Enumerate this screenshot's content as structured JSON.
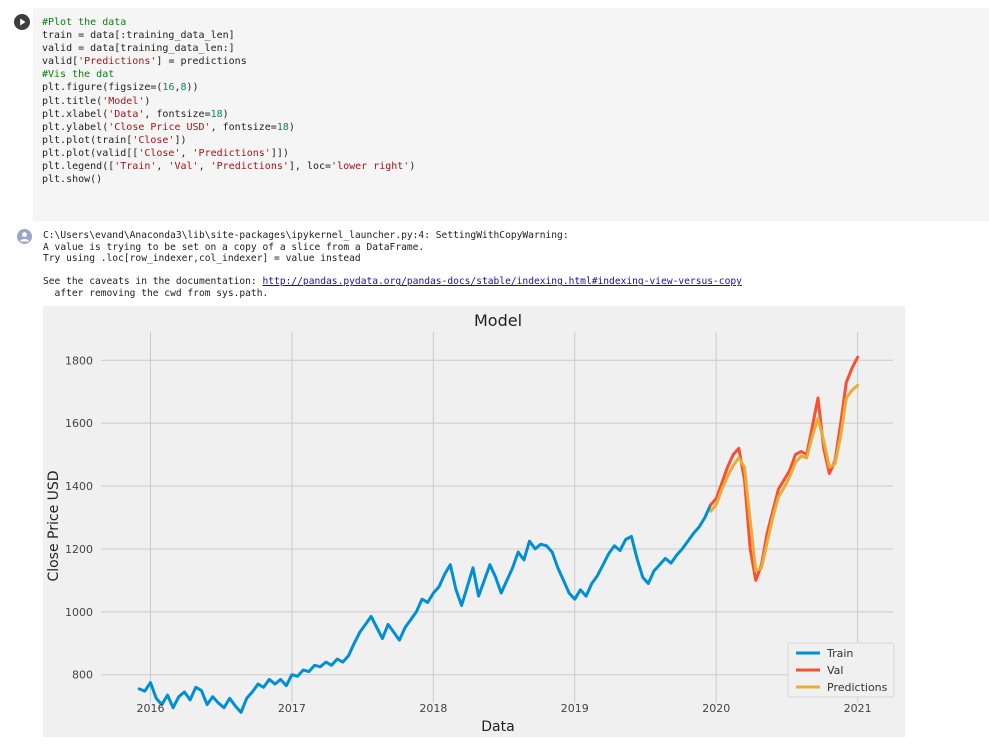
{
  "code": {
    "lines": [
      [
        {
          "t": "#Plot the data",
          "c": "c-com"
        }
      ],
      [
        {
          "t": "train = data[:training_data_len]"
        }
      ],
      [
        {
          "t": "valid = data[training_data_len:]"
        }
      ],
      [
        {
          "t": "valid["
        },
        {
          "t": "'Predictions'",
          "c": "c-str"
        },
        {
          "t": "] = predictions"
        }
      ],
      [
        {
          "t": "#Vis the dat",
          "c": "c-com"
        }
      ],
      [
        {
          "t": "plt.figure(figsize=("
        },
        {
          "t": "16",
          "c": "c-num"
        },
        {
          "t": ","
        },
        {
          "t": "8",
          "c": "c-num"
        },
        {
          "t": "))"
        }
      ],
      [
        {
          "t": "plt.title("
        },
        {
          "t": "'Model'",
          "c": "c-str"
        },
        {
          "t": ")"
        }
      ],
      [
        {
          "t": "plt.xlabel("
        },
        {
          "t": "'Data'",
          "c": "c-str"
        },
        {
          "t": ", fontsize="
        },
        {
          "t": "18",
          "c": "c-num"
        },
        {
          "t": ")"
        }
      ],
      [
        {
          "t": "plt.ylabel("
        },
        {
          "t": "'Close Price USD'",
          "c": "c-str"
        },
        {
          "t": ", fontsize="
        },
        {
          "t": "18",
          "c": "c-num"
        },
        {
          "t": ")"
        }
      ],
      [
        {
          "t": "plt.plot(train["
        },
        {
          "t": "'Close'",
          "c": "c-str"
        },
        {
          "t": "])"
        }
      ],
      [
        {
          "t": "plt.plot(valid[["
        },
        {
          "t": "'Close'",
          "c": "c-str"
        },
        {
          "t": ", "
        },
        {
          "t": "'Predictions'",
          "c": "c-str"
        },
        {
          "t": "]])"
        }
      ],
      [
        {
          "t": "plt.legend(["
        },
        {
          "t": "'Train'",
          "c": "c-str"
        },
        {
          "t": ", "
        },
        {
          "t": "'Val'",
          "c": "c-str"
        },
        {
          "t": ", "
        },
        {
          "t": "'Predictions'",
          "c": "c-str"
        },
        {
          "t": "], loc="
        },
        {
          "t": "'lower right'",
          "c": "c-str"
        },
        {
          "t": ")"
        }
      ],
      [
        {
          "t": "plt.show()"
        }
      ]
    ]
  },
  "output": {
    "warning_line1": "C:\\Users\\evand\\Anaconda3\\lib\\site-packages\\ipykernel_launcher.py:4: SettingWithCopyWarning:",
    "warning_line2": "A value is trying to be set on a copy of a slice from a DataFrame.",
    "warning_line3": "Try using .loc[row_indexer,col_indexer] = value instead",
    "caveats_prefix": "See the caveats in the documentation: ",
    "caveats_link": "http://pandas.pydata.org/pandas-docs/stable/indexing.html#indexing-view-versus-copy",
    "after_line": "  after removing the cwd from sys.path."
  },
  "colors": {
    "train": "#008fd5",
    "val": "#fc4f30",
    "predictions": "#e5ae38",
    "plot_bg": "#f0f0f0",
    "grid": "#cbcbcb"
  },
  "chart_data": {
    "type": "line",
    "title": "Model",
    "xlabel": "Data",
    "ylabel": "Close Price USD",
    "xlim": [
      2015.65,
      2021.25
    ],
    "ylim": [
      710,
      1890
    ],
    "x_ticks": [
      2016,
      2017,
      2018,
      2019,
      2020,
      2021
    ],
    "y_ticks": [
      800,
      1000,
      1200,
      1400,
      1600,
      1800
    ],
    "grid": true,
    "legend_position": "lower right",
    "series": [
      {
        "name": "Train",
        "color": "#008fd5",
        "points": [
          [
            2015.92,
            755
          ],
          [
            2015.96,
            748
          ],
          [
            2016.0,
            775
          ],
          [
            2016.04,
            725
          ],
          [
            2016.08,
            705
          ],
          [
            2016.12,
            735
          ],
          [
            2016.16,
            695
          ],
          [
            2016.2,
            730
          ],
          [
            2016.24,
            745
          ],
          [
            2016.28,
            720
          ],
          [
            2016.32,
            760
          ],
          [
            2016.36,
            750
          ],
          [
            2016.4,
            705
          ],
          [
            2016.44,
            730
          ],
          [
            2016.48,
            710
          ],
          [
            2016.52,
            695
          ],
          [
            2016.56,
            725
          ],
          [
            2016.6,
            700
          ],
          [
            2016.64,
            680
          ],
          [
            2016.68,
            725
          ],
          [
            2016.72,
            745
          ],
          [
            2016.76,
            770
          ],
          [
            2016.8,
            760
          ],
          [
            2016.84,
            785
          ],
          [
            2016.88,
            770
          ],
          [
            2016.92,
            785
          ],
          [
            2016.96,
            765
          ],
          [
            2017.0,
            800
          ],
          [
            2017.04,
            795
          ],
          [
            2017.08,
            815
          ],
          [
            2017.12,
            810
          ],
          [
            2017.16,
            830
          ],
          [
            2017.2,
            825
          ],
          [
            2017.24,
            840
          ],
          [
            2017.28,
            830
          ],
          [
            2017.32,
            850
          ],
          [
            2017.36,
            840
          ],
          [
            2017.4,
            860
          ],
          [
            2017.44,
            900
          ],
          [
            2017.48,
            935
          ],
          [
            2017.52,
            960
          ],
          [
            2017.56,
            985
          ],
          [
            2017.6,
            950
          ],
          [
            2017.64,
            915
          ],
          [
            2017.68,
            960
          ],
          [
            2017.72,
            935
          ],
          [
            2017.76,
            910
          ],
          [
            2017.8,
            950
          ],
          [
            2017.84,
            975
          ],
          [
            2017.88,
            1000
          ],
          [
            2017.92,
            1040
          ],
          [
            2017.96,
            1030
          ],
          [
            2018.0,
            1060
          ],
          [
            2018.04,
            1080
          ],
          [
            2018.08,
            1120
          ],
          [
            2018.12,
            1150
          ],
          [
            2018.16,
            1070
          ],
          [
            2018.2,
            1020
          ],
          [
            2018.24,
            1080
          ],
          [
            2018.28,
            1140
          ],
          [
            2018.32,
            1050
          ],
          [
            2018.36,
            1100
          ],
          [
            2018.4,
            1150
          ],
          [
            2018.44,
            1110
          ],
          [
            2018.48,
            1060
          ],
          [
            2018.52,
            1100
          ],
          [
            2018.56,
            1140
          ],
          [
            2018.6,
            1190
          ],
          [
            2018.64,
            1165
          ],
          [
            2018.68,
            1225
          ],
          [
            2018.72,
            1200
          ],
          [
            2018.76,
            1215
          ],
          [
            2018.8,
            1210
          ],
          [
            2018.84,
            1190
          ],
          [
            2018.88,
            1140
          ],
          [
            2018.92,
            1100
          ],
          [
            2018.96,
            1060
          ],
          [
            2019.0,
            1040
          ],
          [
            2019.04,
            1070
          ],
          [
            2019.08,
            1050
          ],
          [
            2019.12,
            1090
          ],
          [
            2019.16,
            1115
          ],
          [
            2019.2,
            1150
          ],
          [
            2019.24,
            1185
          ],
          [
            2019.28,
            1210
          ],
          [
            2019.32,
            1195
          ],
          [
            2019.36,
            1230
          ],
          [
            2019.4,
            1240
          ],
          [
            2019.44,
            1170
          ],
          [
            2019.48,
            1110
          ],
          [
            2019.52,
            1090
          ],
          [
            2019.56,
            1130
          ],
          [
            2019.6,
            1150
          ],
          [
            2019.64,
            1170
          ],
          [
            2019.68,
            1155
          ],
          [
            2019.72,
            1180
          ],
          [
            2019.76,
            1200
          ],
          [
            2019.8,
            1225
          ],
          [
            2019.84,
            1250
          ],
          [
            2019.88,
            1270
          ],
          [
            2019.92,
            1300
          ],
          [
            2019.96,
            1340
          ]
        ]
      },
      {
        "name": "Val",
        "color": "#fc4f30",
        "points": [
          [
            2019.96,
            1340
          ],
          [
            2020.0,
            1360
          ],
          [
            2020.04,
            1410
          ],
          [
            2020.08,
            1460
          ],
          [
            2020.12,
            1500
          ],
          [
            2020.16,
            1520
          ],
          [
            2020.2,
            1420
          ],
          [
            2020.24,
            1200
          ],
          [
            2020.28,
            1100
          ],
          [
            2020.32,
            1150
          ],
          [
            2020.36,
            1250
          ],
          [
            2020.4,
            1320
          ],
          [
            2020.44,
            1390
          ],
          [
            2020.48,
            1420
          ],
          [
            2020.52,
            1450
          ],
          [
            2020.56,
            1500
          ],
          [
            2020.6,
            1510
          ],
          [
            2020.64,
            1500
          ],
          [
            2020.68,
            1590
          ],
          [
            2020.72,
            1680
          ],
          [
            2020.76,
            1520
          ],
          [
            2020.8,
            1440
          ],
          [
            2020.84,
            1480
          ],
          [
            2020.88,
            1600
          ],
          [
            2020.92,
            1730
          ],
          [
            2020.96,
            1775
          ],
          [
            2021.0,
            1810
          ]
        ]
      },
      {
        "name": "Predictions",
        "color": "#e5ae38",
        "points": [
          [
            2019.96,
            1320
          ],
          [
            2020.0,
            1340
          ],
          [
            2020.04,
            1390
          ],
          [
            2020.08,
            1430
          ],
          [
            2020.12,
            1465
          ],
          [
            2020.16,
            1490
          ],
          [
            2020.2,
            1460
          ],
          [
            2020.24,
            1290
          ],
          [
            2020.28,
            1130
          ],
          [
            2020.32,
            1140
          ],
          [
            2020.36,
            1220
          ],
          [
            2020.4,
            1300
          ],
          [
            2020.44,
            1365
          ],
          [
            2020.48,
            1395
          ],
          [
            2020.52,
            1430
          ],
          [
            2020.56,
            1475
          ],
          [
            2020.6,
            1495
          ],
          [
            2020.64,
            1490
          ],
          [
            2020.68,
            1560
          ],
          [
            2020.72,
            1615
          ],
          [
            2020.76,
            1545
          ],
          [
            2020.8,
            1460
          ],
          [
            2020.84,
            1470
          ],
          [
            2020.88,
            1560
          ],
          [
            2020.92,
            1680
          ],
          [
            2020.96,
            1705
          ],
          [
            2021.0,
            1720
          ]
        ]
      }
    ]
  }
}
